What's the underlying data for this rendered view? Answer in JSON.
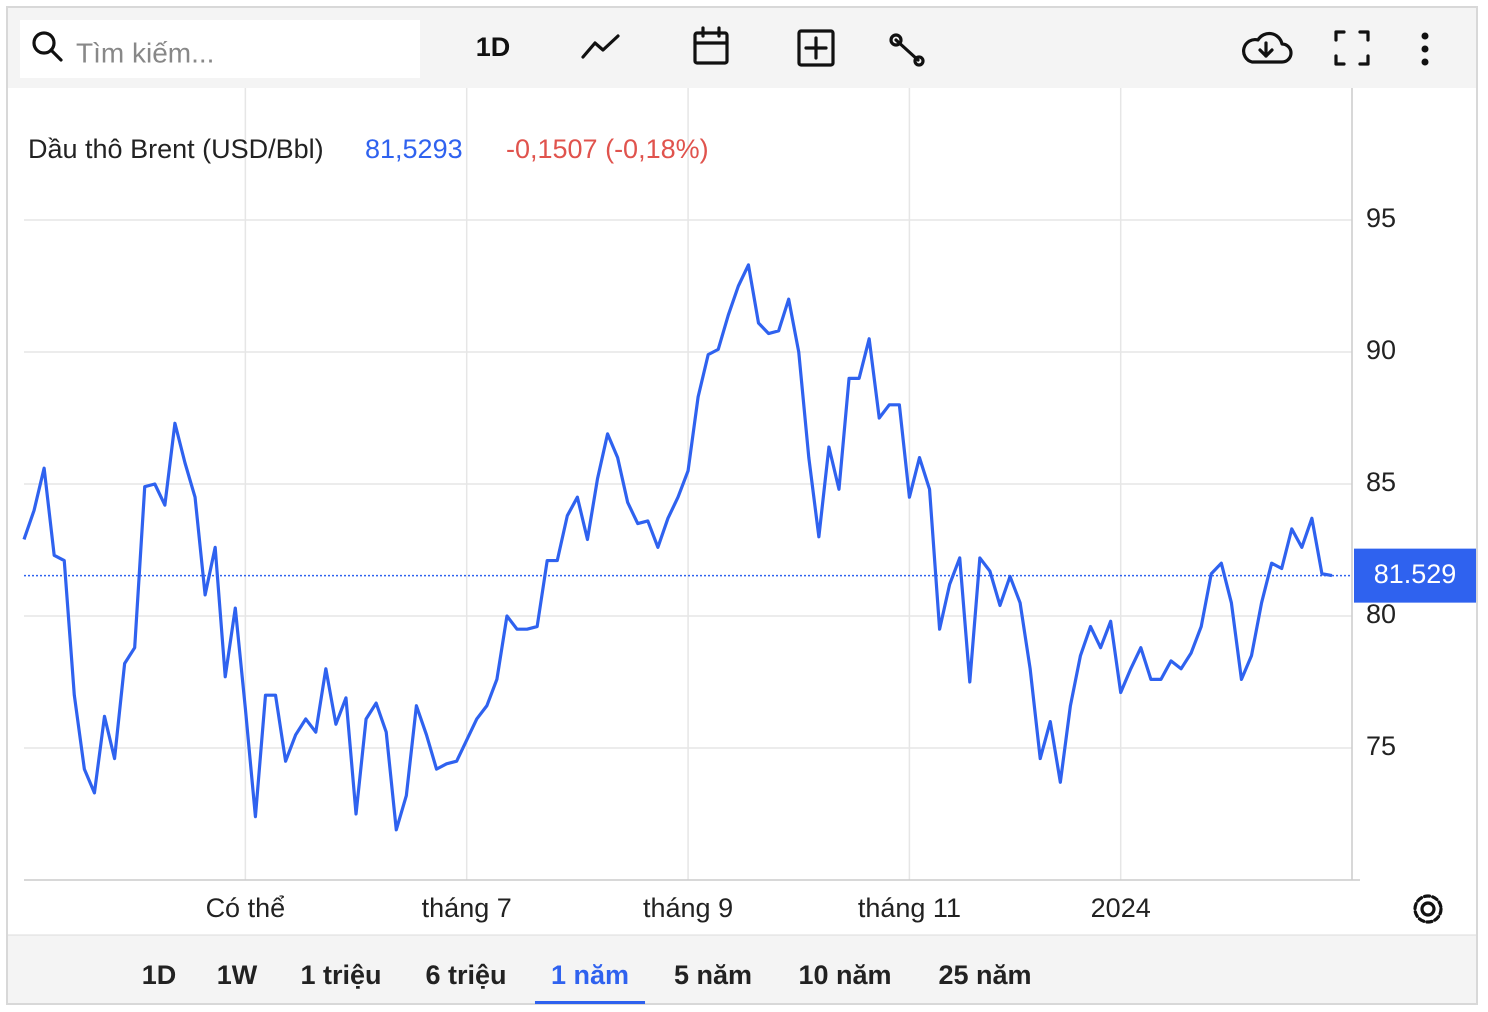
{
  "toolbar": {
    "search_placeholder": "Tìm kiếm...",
    "interval": "1D"
  },
  "chart_data": {
    "type": "line",
    "price": "81,5293",
    "change": "-0,1507 (-0,18%)",
    "change_color": "#e0534d",
    "categories": [
      null,
      null,
      null,
      null,
      null,
      null,
      null,
      null,
      null,
      null,
      null,
      null,
      null,
      null,
      null,
      null,
      null,
      null,
      null,
      null,
      null,
      null,
      "Có thể",
      null,
      null,
      null,
      null,
      null,
      null,
      null,
      null,
      null,
      null,
      null,
      null,
      null,
      null,
      null,
      null,
      null,
      null,
      null,
      null,
      null,
      "tháng 7",
      null,
      null,
      null,
      null,
      null,
      null,
      null,
      null,
      null,
      null,
      null,
      null,
      null,
      null,
      null,
      null,
      null,
      null,
      null,
      null,
      null,
      "tháng 9",
      null,
      null,
      null,
      null,
      null,
      null,
      null,
      null,
      null,
      null,
      null,
      null,
      null,
      null,
      null,
      null,
      null,
      null,
      null,
      null,
      null,
      "tháng 11",
      null,
      null,
      null,
      null,
      null,
      null,
      null,
      null,
      null,
      null,
      null,
      null,
      null,
      null,
      null,
      null,
      null,
      null,
      null,
      null,
      "2024",
      null,
      null,
      null,
      null,
      null,
      null,
      null,
      null,
      null,
      null,
      null,
      null,
      null,
      null,
      null,
      null,
      null,
      null,
      null,
      null,
      null
    ],
    "series": [
      {
        "name": "Dầu thô Brent (USD/Bbl)",
        "color": "#2f62ef",
        "values": [
          82.9,
          84.0,
          85.6,
          82.3,
          82.1,
          77.0,
          74.2,
          73.3,
          76.2,
          74.6,
          78.2,
          78.8,
          84.9,
          85.0,
          84.2,
          87.3,
          85.8,
          84.5,
          80.8,
          82.6,
          77.7,
          80.3,
          76.5,
          72.4,
          77.0,
          77.0,
          74.5,
          75.5,
          76.1,
          75.6,
          78.0,
          75.9,
          76.9,
          72.5,
          76.1,
          76.7,
          75.6,
          71.9,
          73.2,
          76.6,
          75.5,
          74.2,
          74.4,
          74.5,
          75.3,
          76.1,
          76.6,
          77.6,
          80.0,
          79.5,
          79.5,
          79.6,
          82.1,
          82.1,
          83.8,
          84.5,
          82.9,
          85.2,
          86.9,
          86.0,
          84.3,
          83.5,
          83.6,
          82.6,
          83.7,
          84.5,
          85.5,
          88.3,
          89.9,
          90.1,
          91.4,
          92.5,
          93.3,
          91.1,
          90.7,
          90.8,
          92.0,
          90.0,
          86.0,
          83.0,
          86.4,
          84.8,
          89.0,
          89.0,
          90.5,
          87.5,
          88.0,
          88.0,
          84.5,
          86.0,
          84.8,
          79.5,
          81.2,
          82.2,
          77.5,
          82.2,
          81.7,
          80.4,
          81.5,
          80.5,
          78.0,
          74.6,
          76.0,
          73.7,
          76.6,
          78.5,
          79.6,
          78.8,
          79.8,
          77.1,
          78.0,
          78.8,
          77.6,
          77.6,
          78.3,
          78.0,
          78.6,
          79.6,
          81.6,
          82.0,
          80.5,
          77.6,
          78.5,
          80.5,
          82.0,
          81.8,
          83.3,
          82.6,
          83.7,
          81.6,
          81.53
        ]
      }
    ],
    "last_value": 81.529,
    "ylim": [
      70,
      100
    ],
    "yticks": [
      75,
      80,
      85,
      90,
      95
    ],
    "grid": true
  },
  "ranges": [
    "1D",
    "1W",
    "1 triệu",
    "6 triệu",
    "1 năm",
    "5 năm",
    "10 năm",
    "25 năm"
  ],
  "active_range": "1 năm"
}
